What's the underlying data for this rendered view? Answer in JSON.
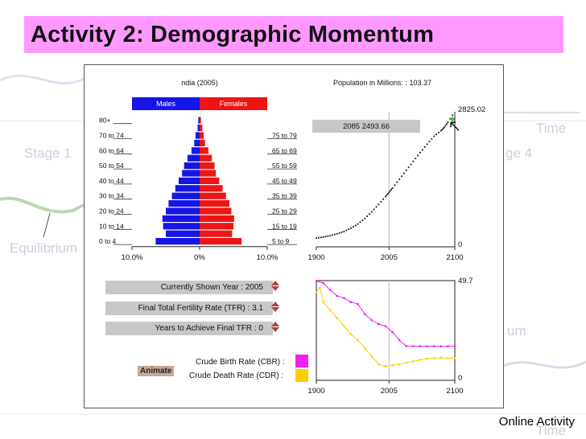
{
  "slide": {
    "title": "Activity 2: Demographic Momentum",
    "footer": "Online Activity",
    "bg_words": {
      "time_top": "Time",
      "stage1": "Stage 1",
      "stage4": "ge 4",
      "equilibrium": "Equilibrium",
      "um": "um",
      "time_bottom": "Time"
    }
  },
  "controls": {
    "current_year": "Currently Shown Year :  2005",
    "tfr": "Final Total Fertility Rate (TFR) :  3.1",
    "years_to_achieve": "Years to Achieve Final TFR :  0",
    "animate": "Animate"
  },
  "colors": {
    "male": "#1515e6",
    "female": "#ee1515",
    "cbr": "#ee22ee",
    "cdr": "#ffcc00",
    "title_bg": "#ff99ff"
  },
  "chart_data": [
    {
      "type": "bar",
      "title": "ndia (2005)",
      "legend": [
        "Males",
        "Females"
      ],
      "x_tick_labels": [
        "10.0%",
        "0%",
        "10.0%"
      ],
      "xlim": [
        -10,
        10
      ],
      "categories": [
        "0 to 4",
        "5 to 9",
        "10 to 14",
        "15 to 19",
        "20 to 24",
        "25 to 29",
        "30 to 34",
        "35 to 39",
        "40 to 44",
        "45 to 49",
        "50 to 54",
        "55 to 59",
        "60 to 64",
        "65 to 69",
        "70 to 74",
        "75 to 79",
        "80+"
      ],
      "left_labels": [
        "0 to 4",
        "",
        "10 to 14",
        "",
        "20 to 24",
        "",
        "30 to 34",
        "",
        "40 to 44",
        "",
        "50 to 54",
        "",
        "60 to 64",
        "",
        "70 to 74",
        "",
        "80+"
      ],
      "right_labels": [
        "5 to 9",
        "",
        "15 to 19",
        "",
        "25 to 29",
        "",
        "35 to 39",
        "",
        "45 to 49",
        "",
        "55 to 59",
        "",
        "65 to 69",
        "",
        "75 to 79",
        "",
        ""
      ],
      "series": [
        {
          "name": "Males",
          "values": [
            6.5,
            5.0,
            5.4,
            5.5,
            5.0,
            4.6,
            4.1,
            3.6,
            3.1,
            2.6,
            2.3,
            1.8,
            1.2,
            0.8,
            0.6,
            0.3,
            0.2
          ]
        },
        {
          "name": "Females",
          "values": [
            6.2,
            4.8,
            5.0,
            5.1,
            4.7,
            4.4,
            3.9,
            3.4,
            2.9,
            2.4,
            2.2,
            1.8,
            1.3,
            0.8,
            0.6,
            0.4,
            0.2
          ]
        }
      ]
    },
    {
      "type": "line",
      "title": "Population in Millions: : 103.37",
      "x_ticks": [
        "1900",
        "2005",
        "2100"
      ],
      "y_top_label": "2825.02",
      "y_bottom_label": "0",
      "xlim": [
        1900,
        2100
      ],
      "ylim": [
        0,
        2825.02
      ],
      "cursor_label": "2085  2493.66",
      "x": [
        1900,
        1910,
        1920,
        1930,
        1940,
        1950,
        1960,
        1970,
        1980,
        1990,
        2000,
        2005,
        2010,
        2020,
        2030,
        2040,
        2050,
        2060,
        2070,
        2080,
        2085,
        2090,
        2100
      ],
      "values": [
        120,
        140,
        170,
        210,
        260,
        330,
        420,
        540,
        680,
        840,
        1010,
        1100,
        1190,
        1380,
        1570,
        1760,
        1950,
        2130,
        2300,
        2420,
        2493.66,
        2600,
        2825.02
      ]
    },
    {
      "type": "line",
      "x_ticks": [
        "1900",
        "2005",
        "2100"
      ],
      "y_top_label": "49.7",
      "y_bottom_label": "0",
      "xlim": [
        1900,
        2100
      ],
      "ylim": [
        0,
        49.7
      ],
      "series": [
        {
          "name": "Crude Birth Rate (CBR) :",
          "x": [
            1900,
            1910,
            1920,
            1930,
            1940,
            1950,
            1960,
            1970,
            1980,
            1990,
            2000,
            2010,
            2020,
            2030,
            2040,
            2050,
            2060,
            2070,
            2080,
            2090,
            2100
          ],
          "values": [
            49.5,
            48.5,
            45,
            42,
            41,
            39,
            38,
            33,
            30,
            28,
            27,
            24,
            20,
            17,
            17,
            17,
            17,
            17,
            17,
            17,
            17
          ]
        },
        {
          "name": "Crude Death Rate (CDR) :",
          "x": [
            1900,
            1905,
            1910,
            1920,
            1930,
            1940,
            1950,
            1960,
            1970,
            1980,
            1990,
            2000,
            2010,
            2020,
            2030,
            2040,
            2050,
            2060,
            2070,
            2080,
            2090,
            2100
          ],
          "values": [
            44,
            46,
            39,
            35,
            31,
            27,
            23,
            20,
            16,
            12,
            8,
            7,
            7.5,
            8,
            8.7,
            9.5,
            10.2,
            10.8,
            11,
            11.2,
            11,
            11
          ]
        }
      ]
    }
  ]
}
